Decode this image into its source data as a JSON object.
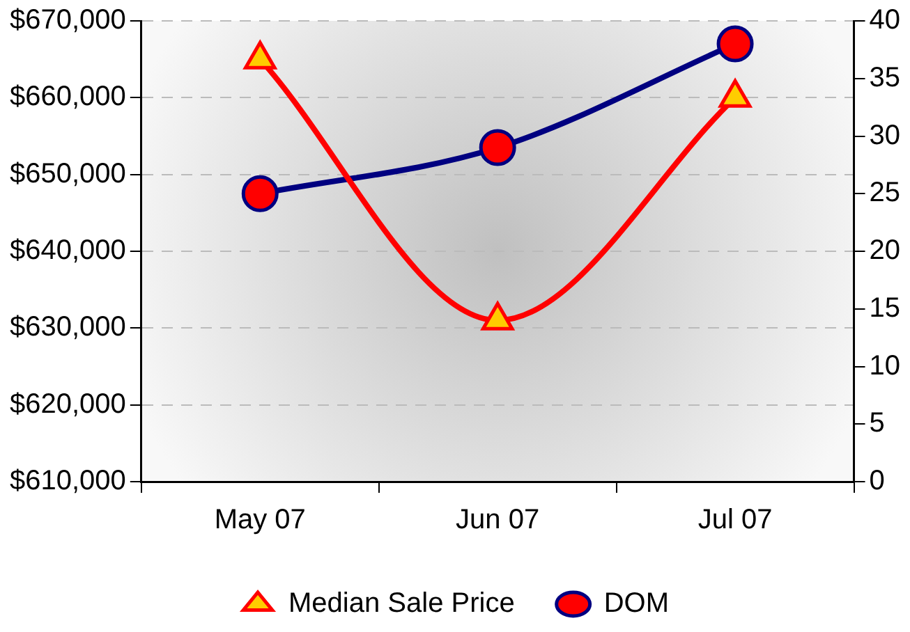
{
  "chart_data": {
    "type": "line",
    "categories": [
      "May 07",
      "Jun 07",
      "Jul 07"
    ],
    "series": [
      {
        "name": "Median Sale Price",
        "color": "#ff0000",
        "values": [
          665000,
          631000,
          660000
        ],
        "marker": "triangle"
      },
      {
        "name": "DOM",
        "color": "#000080",
        "values": [
          25,
          29,
          38
        ],
        "axis": "y2",
        "marker": "circle"
      }
    ],
    "ylim": [
      610000,
      670000
    ],
    "yticks": [
      {
        "value": 610000,
        "label": "$610,000"
      },
      {
        "value": 620000,
        "label": "$620,000"
      },
      {
        "value": 630000,
        "label": "$630,000"
      },
      {
        "value": 640000,
        "label": "$640,000"
      },
      {
        "value": 650000,
        "label": "$650,000"
      },
      {
        "value": 660000,
        "label": "$660,000"
      },
      {
        "value": 670000,
        "label": "$670,000"
      }
    ],
    "y2lim": [
      0,
      40
    ],
    "y2ticks": [
      0,
      5,
      10,
      15,
      20,
      25,
      30,
      35,
      40
    ],
    "grid": "y",
    "legend": "bottom"
  }
}
